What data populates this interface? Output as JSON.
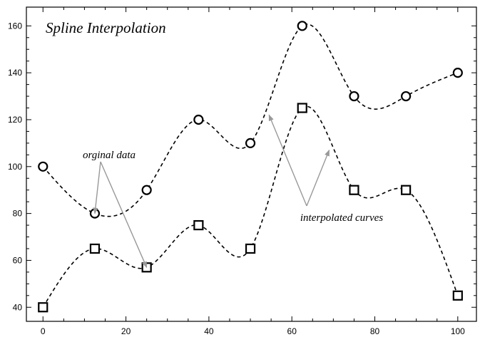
{
  "chart_data": {
    "type": "line",
    "title": "Spline Interpolation",
    "xlabel": "",
    "ylabel": "",
    "xlim": [
      -4,
      104.5
    ],
    "ylim": [
      34,
      168
    ],
    "x_ticks": [
      0,
      20,
      40,
      60,
      80,
      100
    ],
    "y_ticks": [
      40,
      60,
      80,
      100,
      120,
      140,
      160
    ],
    "grid": false,
    "line_style": "dashed",
    "series": [
      {
        "marker": "circle",
        "x": [
          0,
          12.5,
          25,
          37.5,
          50,
          62.5,
          75,
          87.5,
          100
        ],
        "y": [
          100,
          80,
          90,
          120,
          110,
          160,
          130,
          130,
          140
        ]
      },
      {
        "marker": "square",
        "x": [
          0,
          12.5,
          25,
          37.5,
          50,
          62.5,
          75,
          87.5,
          100
        ],
        "y": [
          40,
          65,
          57,
          75,
          65,
          125,
          90,
          90,
          45
        ]
      }
    ],
    "annotations": [
      {
        "text": "orginal data",
        "arrow_targets": [
          [
            12.5,
            80
          ],
          [
            25,
            57
          ]
        ]
      },
      {
        "text": "interpolated curves",
        "arrow_targets": [
          [
            54.5,
            122
          ],
          [
            69,
            107
          ]
        ]
      }
    ],
    "colors": {
      "lines": "#000000",
      "arrows": "#999999"
    }
  }
}
